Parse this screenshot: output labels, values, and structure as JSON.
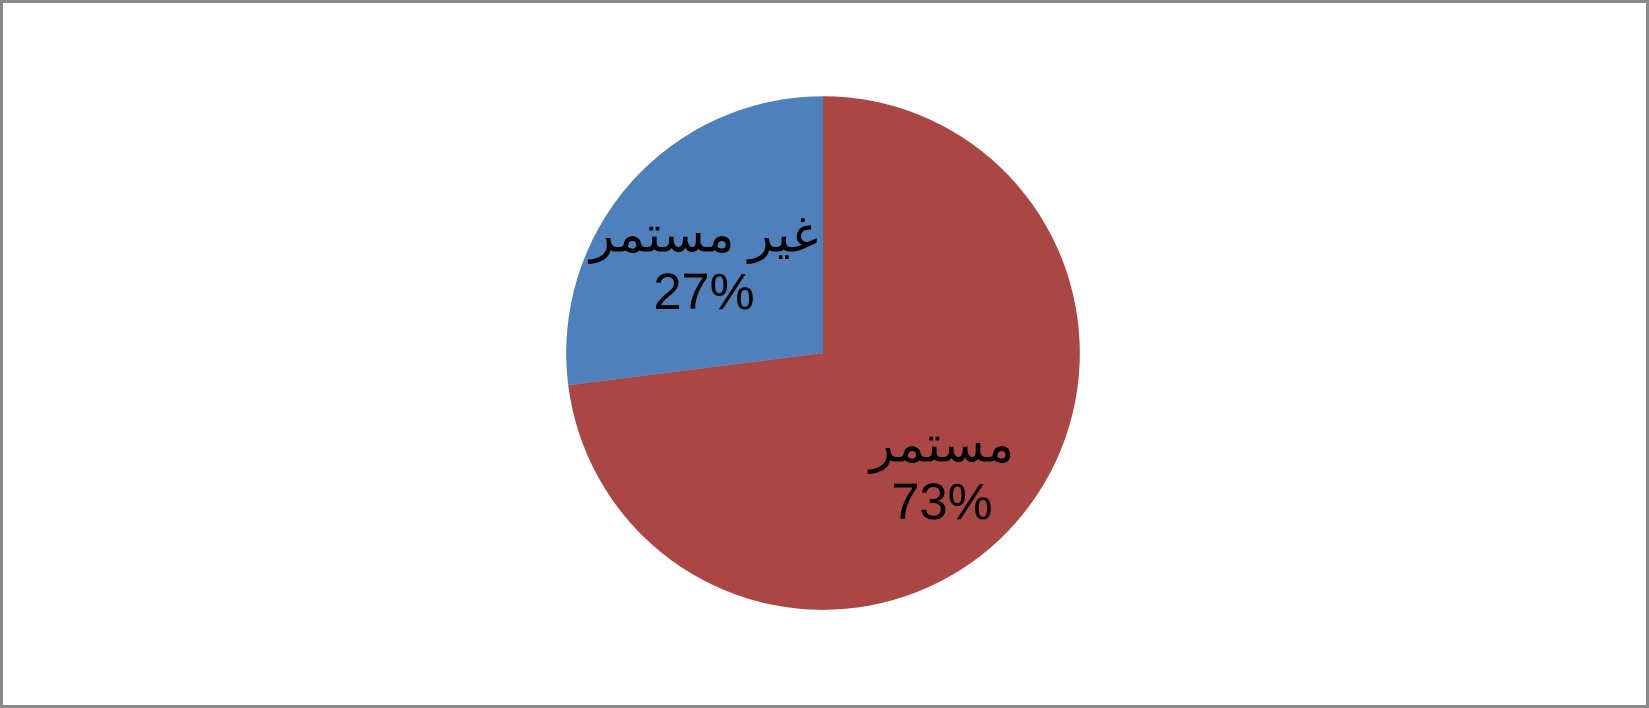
{
  "frame": {
    "background": "#FFFFFF",
    "border_color": "#898989"
  },
  "chart_data": {
    "type": "pie",
    "title": "",
    "legend": "none",
    "grid": "off",
    "start_angle_deg": 0,
    "direction": "clockwise",
    "label_style": "category name + percentage, inside slice",
    "label_color": "#000000",
    "slices": [
      {
        "label": "مستمر",
        "value": 73,
        "percent_label": "73%",
        "color": "#AA4744"
      },
      {
        "label": "غير مستمر",
        "value": 27,
        "percent_label": "27%",
        "color": "#4E80BC"
      }
    ]
  }
}
